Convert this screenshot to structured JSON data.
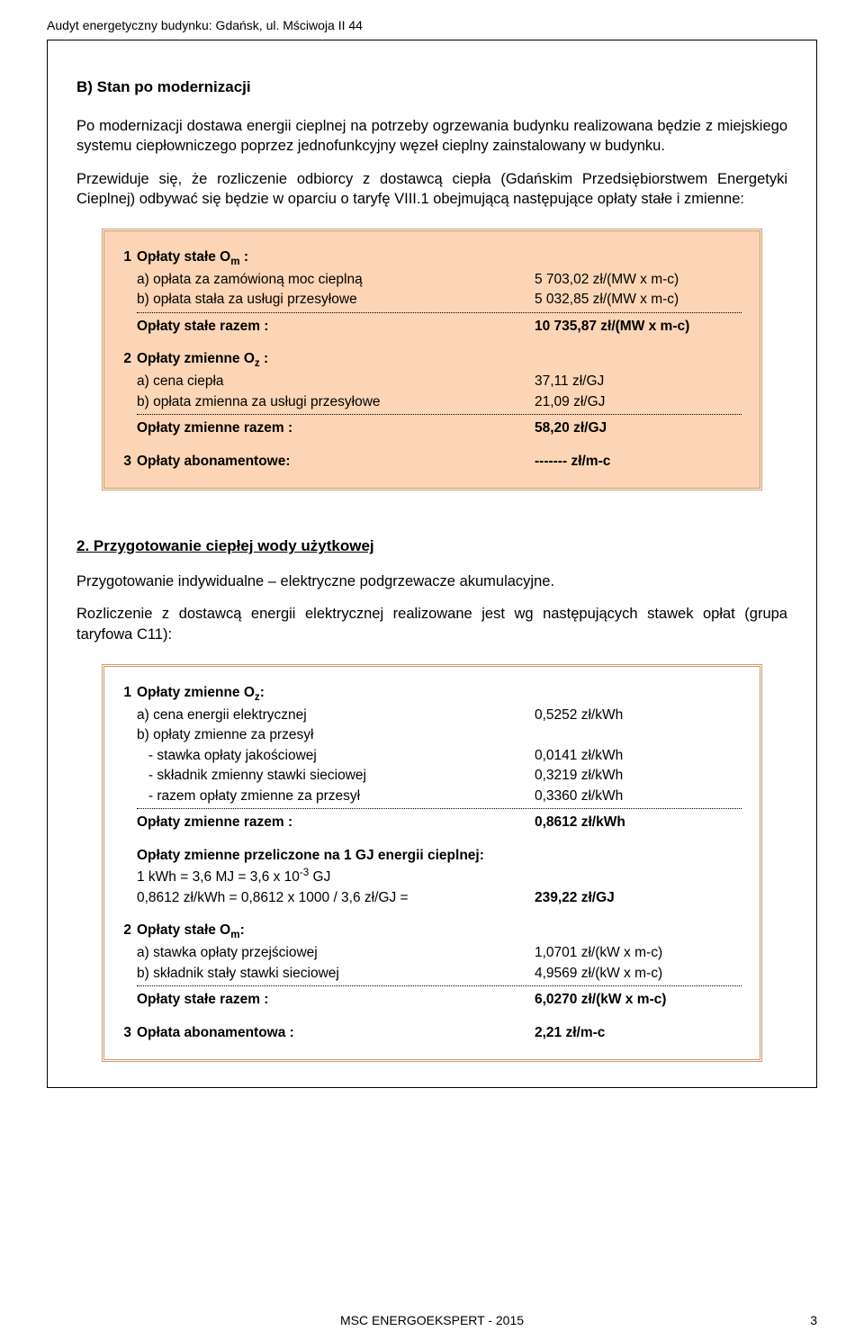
{
  "header": "Audyt energetyczny budynku: Gdańsk, ul. Mściwoja II 44",
  "sectionB": {
    "title": "B)  Stan po modernizacji",
    "para1": "Po modernizacji dostawa energii cieplnej na potrzeby ogrzewania budynku realizowana będzie z miejskiego systemu ciepłowniczego poprzez jednofunkcyjny węzeł cieplny zainstalowany w budynku.",
    "para2": "Przewiduje się, że rozliczenie odbiorcy z dostawcą ciepła (Gdańskim Przedsiębiorstwem Energetyki Cieplnej) odbywać się będzie w oparciu o taryfę VIII.1 obejmującą następujące opłaty stałe i zmienne:"
  },
  "box1": {
    "g1_title_pre": "Opłaty stałe O",
    "g1_title_sub": "m",
    "g1_title_post": " :",
    "g1_a_lbl": "a) opłata za zamówioną moc cieplną",
    "g1_a_val": "5 703,02 zł/(MW x m-c)",
    "g1_b_lbl": "b) opłata stała za usługi przesyłowe",
    "g1_b_val": "5 032,85 zł/(MW x m-c)",
    "g1_sum_lbl": "Opłaty stałe razem :",
    "g1_sum_val": "10 735,87 zł/(MW x m-c)",
    "g2_title_pre": "Opłaty zmienne O",
    "g2_title_sub": "z",
    "g2_title_post": " :",
    "g2_a_lbl": "a) cena ciepła",
    "g2_a_val": "37,11 zł/GJ",
    "g2_b_lbl": "b) opłata zmienna za usługi przesyłowe",
    "g2_b_val": "21,09 zł/GJ",
    "g2_sum_lbl": "Opłaty zmienne razem :",
    "g2_sum_val": "58,20 zł/GJ",
    "g3_lbl": "Opłaty abonamentowe:",
    "g3_val": "------- zł/m-c"
  },
  "section2": {
    "title": "2.  Przygotowanie ciepłej wody użytkowej",
    "para1": "Przygotowanie indywidualne – elektryczne podgrzewacze akumulacyjne.",
    "para2": "Rozliczenie z dostawcą energii elektrycznej realizowane jest wg następujących stawek opłat (grupa taryfowa C11):"
  },
  "box2": {
    "g1_title_pre": "Opłaty zmienne O",
    "g1_title_sub": "z",
    "g1_title_post": ":",
    "g1_a_lbl": "a) cena energii elektrycznej",
    "g1_a_val": "0,5252 zł/kWh",
    "g1_b_lbl": "b) opłaty zmienne za przesył",
    "g1_b1_lbl": "   - stawka opłaty jakościowej",
    "g1_b1_val": "0,0141 zł/kWh",
    "g1_b2_lbl": "   - składnik zmienny stawki sieciowej",
    "g1_b2_val": "0,3219 zł/kWh",
    "g1_b3_lbl": "   - razem opłaty zmienne za przesył",
    "g1_b3_val": "0,3360 zł/kWh",
    "g1_sum_lbl": "Opłaty zmienne razem :",
    "g1_sum_val": "0,8612 zł/kWh",
    "conv_title": "Opłaty zmienne przeliczone na 1 GJ energii cieplnej:",
    "conv_l1_pre": "1 kWh = 3,6 MJ = 3,6 x 10",
    "conv_l1_sup": "-3",
    "conv_l1_post": " GJ",
    "conv_l2_lbl": "0,8612 zł/kWh = 0,8612 x 1000 / 3,6  zł/GJ =",
    "conv_l2_val": "239,22 zł/GJ",
    "g2_title_pre": "Opłaty stałe O",
    "g2_title_sub": "m",
    "g2_title_post": ":",
    "g2_a_lbl": "a) stawka opłaty przejściowej",
    "g2_a_val": "1,0701 zł/(kW x m-c)",
    "g2_b_lbl": "b) składnik stały stawki sieciowej",
    "g2_b_val": "4,9569 zł/(kW x m-c)",
    "g2_sum_lbl": "Opłaty stałe razem :",
    "g2_sum_val": "6,0270 zł/(kW x m-c)",
    "g3_lbl": "Opłata abonamentowa :",
    "g3_val": "2,21 zł/m-c"
  },
  "footer": {
    "center": "MSC ENERGOEKSPERT -  2015",
    "page": "3"
  }
}
